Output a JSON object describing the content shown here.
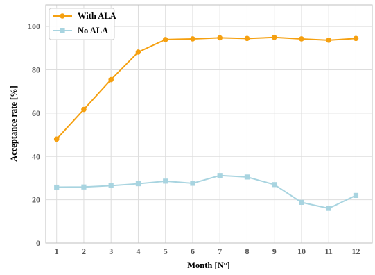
{
  "chart_data": {
    "type": "line",
    "xlabel": "Month [N°]",
    "ylabel": "Acceptance rate [%]",
    "x": [
      1,
      2,
      3,
      4,
      5,
      6,
      7,
      8,
      9,
      10,
      11,
      12
    ],
    "xlim": [
      0.6,
      12.6
    ],
    "ylim": [
      0,
      110
    ],
    "yticks": [
      0,
      20,
      40,
      60,
      80,
      100
    ],
    "grid": true,
    "legend_position": "top-left",
    "series": [
      {
        "name": "With ALA",
        "color": "#f5a010",
        "marker": "circle",
        "values": [
          48,
          61.7,
          75.5,
          88.2,
          94,
          94.3,
          94.8,
          94.5,
          95,
          94.3,
          93.7,
          94.5
        ]
      },
      {
        "name": "No ALA",
        "color": "#a8d4e0",
        "marker": "square",
        "values": [
          25.8,
          25.9,
          26.5,
          27.4,
          28.6,
          27.6,
          31.2,
          30.5,
          27,
          18.8,
          16,
          22
        ]
      }
    ]
  }
}
